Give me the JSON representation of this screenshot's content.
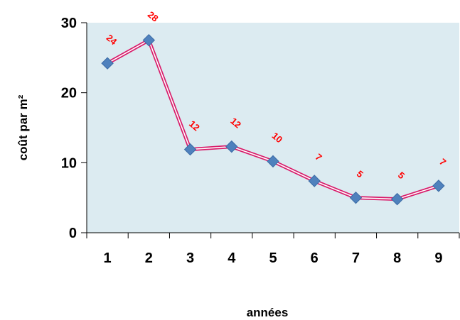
{
  "chart_data": {
    "type": "line",
    "x": [
      "1",
      "2",
      "3",
      "4",
      "5",
      "6",
      "7",
      "8",
      "9"
    ],
    "series": [
      {
        "values": [
          24.2,
          27.5,
          11.9,
          12.3,
          10.2,
          7.4,
          5.0,
          4.8,
          6.7
        ],
        "data_labels": [
          "24",
          "28",
          "12",
          "12",
          "10",
          "7",
          "5",
          "5",
          "7"
        ]
      }
    ],
    "xlabel": "années",
    "ylabel": "coût par m²",
    "ylim": [
      0,
      30
    ],
    "yticks": [
      "0",
      "10",
      "20",
      "30"
    ],
    "grid": false,
    "legend": "none",
    "colors": {
      "plot_background": "#DCEBF1",
      "line": "#D81B6A",
      "marker": "#4F81BD",
      "data_label": "#FF0000"
    }
  }
}
